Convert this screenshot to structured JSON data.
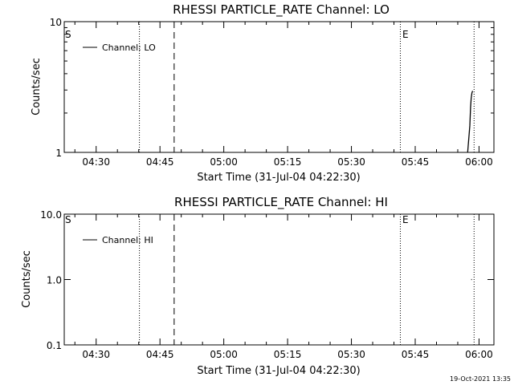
{
  "footer": {
    "timestamp": "19-Oct-2021 13:35"
  },
  "chart_data": [
    {
      "type": "line",
      "title": "RHESSI PARTICLE_RATE Channel: LO",
      "xlabel": "Start Time (31-Jul-04 04:22:30)",
      "ylabel": "Counts/sec",
      "xlim": [
        "04:22:30",
        "06:03:30"
      ],
      "xticks": [
        "04:30",
        "04:45",
        "05:00",
        "05:15",
        "05:30",
        "05:45",
        "06:00"
      ],
      "ylim": [
        1,
        10
      ],
      "yscale": "log",
      "yticks": [
        "1",
        "10"
      ],
      "legend": {
        "label": "Channel: LO",
        "placement": "top-left"
      },
      "markers": [
        {
          "label": "S",
          "time": "04:22:30"
        },
        {
          "label": "E",
          "time": "05:41:30"
        }
      ],
      "vlines": [
        {
          "time": "04:40:10",
          "style": "dotted"
        },
        {
          "time": "04:48:20",
          "style": "dashed"
        },
        {
          "time": "05:41:30",
          "style": "dotted"
        },
        {
          "time": "05:58:50",
          "style": "dotted"
        }
      ],
      "series": [
        {
          "name": "Channel: LO",
          "x": [
            "05:57:20",
            "05:57:50",
            "05:58:00",
            "05:58:10",
            "05:58:20",
            "05:58:30"
          ],
          "y": [
            1.0,
            1.6,
            2.2,
            2.6,
            2.85,
            2.95
          ]
        }
      ]
    },
    {
      "type": "line",
      "title": "RHESSI PARTICLE_RATE Channel: HI",
      "xlabel": "Start Time (31-Jul-04 04:22:30)",
      "ylabel": "Counts/sec",
      "xlim": [
        "04:22:30",
        "06:03:30"
      ],
      "xticks": [
        "04:30",
        "04:45",
        "05:00",
        "05:15",
        "05:30",
        "05:45",
        "06:00"
      ],
      "ylim": [
        0.1,
        10
      ],
      "yscale": "log",
      "yticks": [
        "0.1",
        "1.0",
        "10.0"
      ],
      "legend": {
        "label": "Channel: HI",
        "placement": "top-left"
      },
      "markers": [
        {
          "label": "S",
          "time": "04:22:30"
        },
        {
          "label": "E",
          "time": "05:41:30"
        }
      ],
      "vlines": [
        {
          "time": "04:40:10",
          "style": "dotted"
        },
        {
          "time": "04:48:20",
          "style": "dashed"
        },
        {
          "time": "05:41:30",
          "style": "dotted"
        },
        {
          "time": "05:58:50",
          "style": "dotted"
        }
      ],
      "series": [
        {
          "name": "Channel: HI",
          "x": [
            "05:58:10",
            "05:58:20"
          ],
          "y": [
            1.0,
            1.0
          ]
        }
      ]
    }
  ]
}
